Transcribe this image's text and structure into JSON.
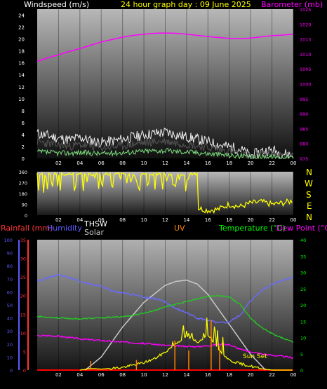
{
  "header": {
    "windspeed_label": "Windspeed (m/s)",
    "graph_title": "24 hour graph day : 09 June 2025",
    "barometer_label": "Barometer (mb)"
  },
  "compass": [
    "N",
    "W",
    "S",
    "E",
    "N"
  ],
  "legend": {
    "rainfall": "Rainfall (mm)",
    "humidity": "Humidity",
    "thsw": "THSW",
    "solar": "Solar",
    "uv": "UV",
    "temperature": "Temperature (°C)",
    "dewpoint": "Dew Point (°C)"
  },
  "annotations": {
    "sunset": "Sun Set"
  },
  "colors": {
    "background": "#000000",
    "windspeed": "#c8c8c8",
    "gust": "#f0f0f0",
    "wind_avg": "#7ee07e",
    "barometer": "#ff00ff",
    "direction": "#ffff00",
    "rainfall": "#ff3333",
    "humidity": "#6a6aff",
    "temperature": "#22cc22",
    "dewpoint": "#ff00ff",
    "uv": "#ff8000",
    "solar": "#c8c8c8",
    "label_yellow": "#ffff00",
    "label_green": "#00ff00",
    "label_blue": "#5a5aff"
  },
  "chart_data": [
    {
      "type": "line",
      "title": "24 hour graph day : 09 June 2025",
      "x_ticks": [
        "02",
        "04",
        "06",
        "08",
        "10",
        "12",
        "14",
        "16",
        "18",
        "20",
        "22",
        "00"
      ],
      "xlim": [
        0,
        24
      ],
      "y_left": {
        "label": "Windspeed (m/s)",
        "ylim": [
          0,
          25
        ],
        "ticks": [
          0,
          2,
          4,
          6,
          8,
          10,
          12,
          14,
          16,
          18,
          20,
          22,
          24
        ]
      },
      "y_right": {
        "label": "Barometer (mb)",
        "ylim": [
          975,
          1025
        ],
        "ticks": [
          975,
          980,
          985,
          990,
          995,
          1000,
          1005,
          1010,
          1015,
          1020,
          1025
        ]
      },
      "series": [
        {
          "name": "Barometer (mb)",
          "axis": "right",
          "x": [
            0,
            1,
            2,
            3,
            4,
            5,
            6,
            7,
            8,
            9,
            10,
            11,
            12,
            13,
            14,
            15,
            16,
            17,
            18,
            19,
            20,
            21,
            22,
            23,
            24
          ],
          "values": [
            1007.5,
            1008.7,
            1009.7,
            1010.8,
            1011.8,
            1012.9,
            1014.0,
            1014.8,
            1015.6,
            1016.2,
            1016.6,
            1016.9,
            1017.0,
            1016.9,
            1016.6,
            1016.2,
            1015.8,
            1015.5,
            1015.2,
            1015.1,
            1015.3,
            1015.7,
            1016.1,
            1016.3,
            1016.6
          ]
        },
        {
          "name": "Windspeed gust",
          "axis": "left",
          "x": [
            0,
            1,
            2,
            3,
            4,
            5,
            6,
            7,
            8,
            9,
            10,
            11,
            12,
            13,
            14,
            15,
            16,
            17,
            18,
            19,
            20,
            21,
            22,
            23,
            24
          ],
          "values": [
            4.2,
            3.8,
            3.4,
            3.1,
            3.5,
            3.0,
            2.7,
            2.9,
            3.2,
            3.6,
            3.9,
            4.2,
            4.4,
            4.0,
            3.6,
            3.2,
            2.8,
            2.3,
            1.9,
            1.6,
            0.4,
            1.2,
            1.4,
            0.8,
            0.6
          ]
        },
        {
          "name": "Windspeed",
          "axis": "left",
          "x": [
            0,
            1,
            2,
            3,
            4,
            5,
            6,
            7,
            8,
            9,
            10,
            11,
            12,
            13,
            14,
            15,
            16,
            17,
            18,
            19,
            20,
            21,
            22,
            23,
            24
          ],
          "values": [
            2.8,
            2.5,
            2.2,
            2.0,
            2.3,
            2.0,
            1.8,
            1.9,
            2.1,
            2.4,
            2.6,
            2.8,
            2.9,
            2.6,
            2.4,
            2.1,
            1.8,
            1.5,
            1.2,
            1.0,
            0.2,
            0.7,
            0.8,
            0.4,
            0.3
          ]
        },
        {
          "name": "Windspeed average",
          "axis": "left",
          "x": [
            0,
            1,
            2,
            3,
            4,
            5,
            6,
            7,
            8,
            9,
            10,
            11,
            12,
            13,
            14,
            15,
            16,
            17,
            18,
            19,
            20,
            21,
            22,
            23,
            24
          ],
          "values": [
            1.1,
            1.0,
            0.9,
            0.9,
            1.0,
            0.9,
            0.8,
            0.9,
            1.0,
            1.1,
            1.2,
            1.3,
            1.3,
            1.2,
            1.1,
            1.0,
            0.8,
            0.7,
            0.5,
            0.4,
            0.1,
            0.3,
            0.3,
            0.2,
            0.1
          ]
        }
      ]
    },
    {
      "type": "line",
      "x_ticks": [
        "02",
        "04",
        "06",
        "08",
        "10",
        "12",
        "14",
        "16",
        "18",
        "20",
        "22",
        "00"
      ],
      "xlim": [
        0,
        24
      ],
      "y_left": {
        "ylim": [
          0,
          360
        ],
        "ticks": [
          0,
          90,
          180,
          270,
          360
        ]
      },
      "series": [
        {
          "name": "Wind direction",
          "x": [
            0,
            1,
            2,
            3,
            4,
            5,
            6,
            7,
            8,
            9,
            10,
            11,
            12,
            13,
            14,
            15,
            16,
            17,
            18,
            19,
            20,
            21,
            22,
            23,
            24
          ],
          "values": [
            320,
            200,
            340,
            150,
            330,
            280,
            340,
            220,
            330,
            300,
            340,
            250,
            330,
            310,
            300,
            60,
            40,
            50,
            90,
            70,
            100,
            110,
            90,
            100,
            120
          ]
        }
      ]
    },
    {
      "type": "line",
      "x_ticks": [
        "02",
        "04",
        "06",
        "08",
        "10",
        "12",
        "14",
        "16",
        "18",
        "20",
        "22",
        "00"
      ],
      "xlim": [
        0,
        24
      ],
      "y_humidity": {
        "label": "Humidity",
        "ylim": [
          0,
          100
        ],
        "ticks": [
          0,
          10,
          20,
          30,
          40,
          50,
          60,
          70,
          80,
          90,
          100
        ]
      },
      "y_rainfall": {
        "label": "Rainfall (mm)",
        "ylim": [
          0,
          35
        ],
        "ticks": [
          0,
          5,
          10,
          15,
          20,
          25,
          30,
          35
        ]
      },
      "y_right": {
        "label": "Temperature (°C)",
        "ylim": [
          0,
          40
        ],
        "ticks": [
          0,
          5,
          10,
          15,
          20,
          25,
          30,
          35,
          40
        ]
      },
      "series": [
        {
          "name": "Humidity",
          "axis": "humidity",
          "x": [
            0,
            1,
            2,
            3,
            4,
            5,
            6,
            7,
            8,
            9,
            10,
            11,
            12,
            13,
            14,
            15,
            16,
            17,
            18,
            19,
            20,
            21,
            22,
            23,
            24
          ],
          "values": [
            68,
            71,
            73,
            71,
            68,
            66,
            64,
            61,
            59,
            58,
            56,
            55,
            52,
            47,
            44,
            40,
            38,
            36,
            37,
            42,
            53,
            61,
            66,
            69,
            71
          ]
        },
        {
          "name": "Temperature (°C)",
          "axis": "right",
          "x": [
            0,
            1,
            2,
            3,
            4,
            5,
            6,
            7,
            8,
            9,
            10,
            11,
            12,
            13,
            14,
            15,
            16,
            17,
            18,
            19,
            20,
            21,
            22,
            23,
            24
          ],
          "values": [
            16.5,
            16.2,
            16.0,
            15.8,
            15.7,
            15.9,
            16.0,
            16.2,
            16.4,
            16.8,
            17.5,
            18.3,
            19.5,
            20.2,
            21.0,
            21.8,
            22.6,
            22.9,
            22.4,
            20.2,
            16.0,
            13.1,
            11.2,
            9.8,
            8.5
          ]
        },
        {
          "name": "Dew Point (°C)",
          "axis": "right",
          "x": [
            0,
            1,
            2,
            3,
            4,
            5,
            6,
            7,
            8,
            9,
            10,
            11,
            12,
            13,
            14,
            15,
            16,
            17,
            18,
            19,
            20,
            21,
            22,
            23,
            24
          ],
          "values": [
            10.5,
            10.6,
            10.4,
            10.0,
            9.6,
            9.3,
            9.1,
            8.8,
            8.6,
            8.4,
            8.2,
            7.9,
            7.6,
            7.4,
            7.3,
            7.2,
            7.5,
            7.9,
            7.8,
            6.4,
            5.6,
            5.0,
            4.6,
            4.2,
            3.8
          ]
        },
        {
          "name": "Solar",
          "axis": "humidity",
          "x": [
            4.5,
            6,
            8,
            10,
            12,
            13,
            14,
            15,
            16,
            18,
            20,
            21.4
          ],
          "values": [
            0,
            10,
            33,
            52,
            65,
            68,
            69,
            66,
            58,
            35,
            12,
            0
          ]
        },
        {
          "name": "UV",
          "axis": "right",
          "x": [
            4,
            5,
            6,
            8,
            9,
            10,
            11,
            12,
            13,
            14,
            15,
            16,
            17,
            18,
            19,
            20,
            21,
            22,
            23,
            24
          ],
          "values": [
            0,
            0.5,
            0.3,
            0.8,
            1.5,
            2.3,
            3.5,
            5.5,
            8.2,
            10.5,
            8.5,
            11.0,
            6.5,
            3.0,
            2.0,
            1.2,
            0.4,
            0,
            0,
            0
          ]
        }
      ]
    }
  ]
}
